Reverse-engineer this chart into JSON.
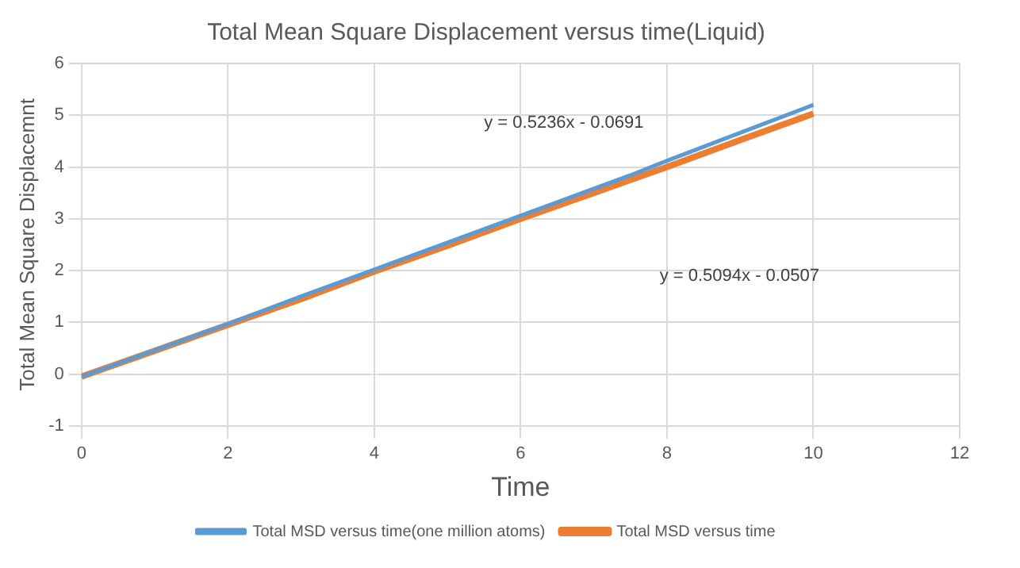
{
  "chart_data": {
    "type": "line",
    "title": "Total Mean Square Displacement versus time(Liquid)",
    "xlabel": "Time",
    "ylabel": "Total Mean Square Displacemnt",
    "x": [
      0,
      1,
      2,
      3,
      4,
      5,
      6,
      7,
      7.5,
      8,
      9,
      10
    ],
    "series": [
      {
        "name": "Total MSD versus time(one million atoms)",
        "color": "#5b9bd5",
        "values": [
          -0.05,
          0.46,
          0.97,
          1.5,
          2.02,
          2.54,
          3.06,
          3.58,
          3.84,
          4.12,
          4.66,
          5.2
        ]
      },
      {
        "name": "Total MSD versus time",
        "color": "#ed7d31",
        "values": [
          -0.05,
          0.45,
          0.95,
          1.45,
          1.98,
          2.48,
          3.0,
          3.5,
          3.75,
          4.0,
          4.52,
          5.03
        ]
      }
    ],
    "annotations": [
      "y = 0.5236x - 0.0691",
      "y = 0.5094x - 0.0507"
    ],
    "xlim": [
      0,
      12
    ],
    "xticks": [
      0,
      2,
      4,
      6,
      8,
      10,
      12
    ],
    "ylim": [
      -1,
      6
    ],
    "yticks": [
      -1,
      0,
      1,
      2,
      3,
      4,
      5,
      6
    ],
    "grid": true,
    "legend": "bottom",
    "marker": "none",
    "line_style": "solid"
  }
}
